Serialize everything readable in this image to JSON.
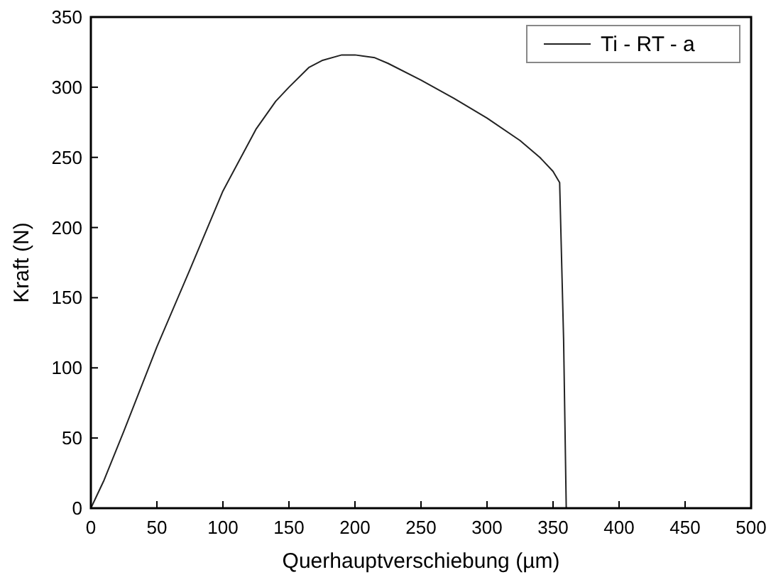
{
  "chart_data": {
    "type": "line",
    "xlabel": "Querhauptverschiebung (µm)",
    "ylabel": "Kraft (N)",
    "x": [
      0,
      10,
      25,
      50,
      75,
      100,
      125,
      140,
      150,
      165,
      175,
      190,
      200,
      215,
      225,
      250,
      275,
      300,
      325,
      340,
      350,
      355,
      358,
      360
    ],
    "series": [
      {
        "name": "Ti - RT - a",
        "color": "#222222",
        "values": [
          0,
          20,
          55,
          115,
          170,
          226,
          270,
          290,
          300,
          314,
          319,
          323,
          323,
          321,
          317,
          305,
          292,
          278,
          262,
          250,
          240,
          232,
          120,
          0
        ]
      }
    ],
    "xlim": [
      0,
      500
    ],
    "ylim": [
      0,
      350
    ],
    "xticks": [
      0,
      50,
      100,
      150,
      200,
      250,
      300,
      350,
      400,
      450,
      500
    ],
    "yticks": [
      0,
      50,
      100,
      150,
      200,
      250,
      300,
      350
    ],
    "legend": "top right",
    "grid": false,
    "marker": "none",
    "line_style": "solid"
  }
}
